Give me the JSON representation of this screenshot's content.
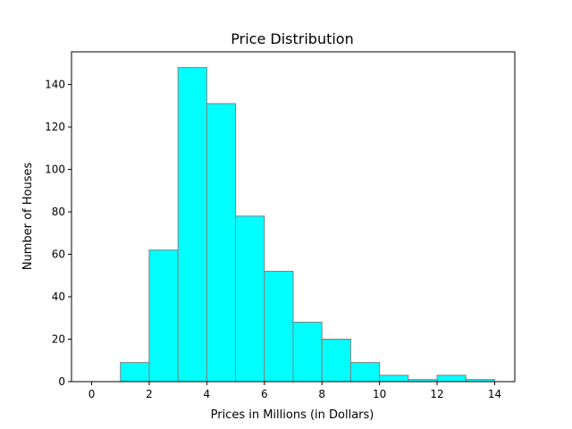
{
  "chart_data": {
    "type": "bar",
    "title": "Price Distribution",
    "xlabel": "Prices in Millions (in Dollars)",
    "ylabel": "Number of Houses",
    "bins": [
      {
        "x0": 0,
        "x1": 1,
        "count": 0
      },
      {
        "x0": 1,
        "x1": 2,
        "count": 9
      },
      {
        "x0": 2,
        "x1": 3,
        "count": 62
      },
      {
        "x0": 3,
        "x1": 4,
        "count": 148
      },
      {
        "x0": 4,
        "x1": 5,
        "count": 131
      },
      {
        "x0": 5,
        "x1": 6,
        "count": 78
      },
      {
        "x0": 6,
        "x1": 7,
        "count": 52
      },
      {
        "x0": 7,
        "x1": 8,
        "count": 28
      },
      {
        "x0": 8,
        "x1": 9,
        "count": 20
      },
      {
        "x0": 9,
        "x1": 10,
        "count": 9
      },
      {
        "x0": 10,
        "x1": 11,
        "count": 3
      },
      {
        "x0": 11,
        "x1": 12,
        "count": 1
      },
      {
        "x0": 12,
        "x1": 13,
        "count": 3
      },
      {
        "x0": 13,
        "x1": 14,
        "count": 1
      }
    ],
    "xlim": [
      -0.7,
      14.7
    ],
    "ylim": [
      0,
      155.4
    ],
    "xticks": [
      0,
      2,
      4,
      6,
      8,
      10,
      12,
      14
    ],
    "yticks": [
      0,
      20,
      40,
      60,
      80,
      100,
      120,
      140
    ],
    "grid": false,
    "colors": {
      "bar_fill": "#00ffff",
      "bar_edge": "#808080",
      "axis": "#000000"
    }
  }
}
